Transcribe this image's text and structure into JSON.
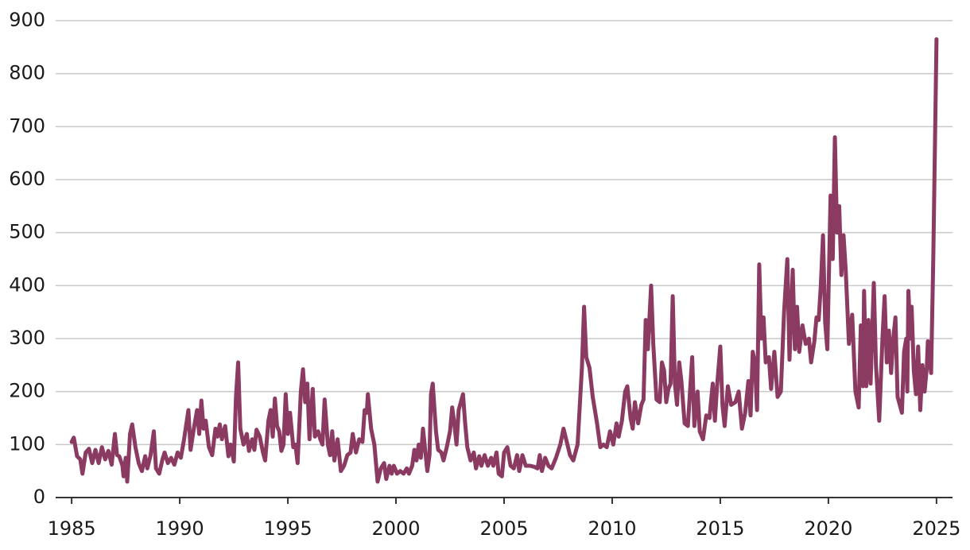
{
  "chart_data": {
    "type": "line",
    "x": [
      1985.0,
      1985.1,
      1985.25,
      1985.4,
      1985.5,
      1985.65,
      1985.8,
      1985.95,
      1986.1,
      1986.25,
      1986.4,
      1986.55,
      1986.7,
      1986.85,
      1987.0,
      1987.1,
      1987.2,
      1987.35,
      1987.4,
      1987.5,
      1987.57,
      1987.7,
      1987.8,
      1987.95,
      1988.1,
      1988.25,
      1988.4,
      1988.5,
      1988.65,
      1988.8,
      1988.9,
      1989.05,
      1989.2,
      1989.3,
      1989.45,
      1989.6,
      1989.75,
      1989.9,
      1990.05,
      1990.2,
      1990.4,
      1990.5,
      1990.65,
      1990.8,
      1990.9,
      1991.0,
      1991.1,
      1991.2,
      1991.35,
      1991.5,
      1991.65,
      1991.75,
      1991.85,
      1991.95,
      1992.1,
      1992.25,
      1992.35,
      1992.5,
      1992.6,
      1992.7,
      1992.8,
      1992.95,
      1993.1,
      1993.2,
      1993.35,
      1993.45,
      1993.55,
      1993.7,
      1993.85,
      1993.95,
      1994.1,
      1994.2,
      1994.3,
      1994.4,
      1994.5,
      1994.6,
      1994.7,
      1994.8,
      1994.9,
      1995.0,
      1995.1,
      1995.25,
      1995.35,
      1995.45,
      1995.6,
      1995.7,
      1995.8,
      1995.9,
      1996.0,
      1996.15,
      1996.25,
      1996.4,
      1996.5,
      1996.6,
      1996.7,
      1996.85,
      1996.95,
      1997.05,
      1997.15,
      1997.3,
      1997.45,
      1997.6,
      1997.75,
      1997.9,
      1998.0,
      1998.15,
      1998.3,
      1998.45,
      1998.55,
      1998.65,
      1998.7,
      1998.85,
      1999.0,
      1999.15,
      1999.3,
      1999.45,
      1999.55,
      1999.7,
      1999.8,
      1999.9,
      2000.05,
      2000.2,
      2000.35,
      2000.5,
      2000.6,
      2000.75,
      2000.85,
      2000.95,
      2001.05,
      2001.15,
      2001.25,
      2001.35,
      2001.45,
      2001.55,
      2001.62,
      2001.7,
      2001.85,
      2001.95,
      2002.1,
      2002.2,
      2002.35,
      2002.5,
      2002.6,
      2002.7,
      2002.8,
      2002.9,
      2003.1,
      2003.2,
      2003.3,
      2003.45,
      2003.6,
      2003.7,
      2003.85,
      2003.95,
      2004.1,
      2004.25,
      2004.4,
      2004.5,
      2004.65,
      2004.75,
      2004.9,
      2005.0,
      2005.15,
      2005.3,
      2005.45,
      2005.6,
      2005.7,
      2005.85,
      2006.0,
      2006.2,
      2006.4,
      2006.55,
      2006.65,
      2006.75,
      2006.9,
      2007.05,
      2007.2,
      2007.4,
      2007.6,
      2007.75,
      2007.9,
      2008.05,
      2008.2,
      2008.4,
      2008.6,
      2008.7,
      2008.8,
      2008.95,
      2009.1,
      2009.3,
      2009.45,
      2009.6,
      2009.75,
      2009.9,
      2010.05,
      2010.2,
      2010.3,
      2010.45,
      2010.6,
      2010.7,
      2010.85,
      2010.95,
      2011.05,
      2011.2,
      2011.35,
      2011.45,
      2011.55,
      2011.65,
      2011.8,
      2011.9,
      2012.05,
      2012.2,
      2012.3,
      2012.4,
      2012.5,
      2012.6,
      2012.7,
      2012.8,
      2012.9,
      2013.0,
      2013.1,
      2013.2,
      2013.35,
      2013.5,
      2013.7,
      2013.8,
      2013.95,
      2014.05,
      2014.2,
      2014.35,
      2014.5,
      2014.65,
      2014.75,
      2014.85,
      2015.0,
      2015.1,
      2015.2,
      2015.35,
      2015.5,
      2015.7,
      2015.85,
      2016.0,
      2016.15,
      2016.3,
      2016.4,
      2016.5,
      2016.6,
      2016.7,
      2016.8,
      2016.9,
      2017.0,
      2017.1,
      2017.25,
      2017.35,
      2017.5,
      2017.65,
      2017.8,
      2017.95,
      2018.1,
      2018.2,
      2018.35,
      2018.45,
      2018.55,
      2018.65,
      2018.8,
      2018.95,
      2019.1,
      2019.2,
      2019.35,
      2019.45,
      2019.55,
      2019.65,
      2019.75,
      2019.85,
      2019.95,
      2020.1,
      2020.2,
      2020.3,
      2020.4,
      2020.5,
      2020.6,
      2020.7,
      2020.8,
      2020.95,
      2021.1,
      2021.25,
      2021.4,
      2021.5,
      2021.6,
      2021.65,
      2021.75,
      2021.85,
      2021.95,
      2022.1,
      2022.2,
      2022.35,
      2022.5,
      2022.6,
      2022.7,
      2022.8,
      2022.9,
      2023.0,
      2023.1,
      2023.2,
      2023.4,
      2023.5,
      2023.6,
      2023.65,
      2023.7,
      2023.8,
      2023.85,
      2023.95,
      2024.05,
      2024.15,
      2024.25,
      2024.35,
      2024.45,
      2024.55,
      2024.6,
      2024.75,
      2024.85,
      2025.0
    ],
    "series": [
      {
        "color": "#8b3a62",
        "values": [
          105,
          113,
          78,
          72,
          45,
          85,
          92,
          65,
          90,
          65,
          95,
          72,
          88,
          62,
          120,
          80,
          78,
          60,
          40,
          75,
          30,
          120,
          138,
          95,
          65,
          50,
          78,
          55,
          80,
          125,
          55,
          45,
          72,
          85,
          65,
          75,
          62,
          85,
          75,
          110,
          165,
          90,
          130,
          165,
          120,
          183,
          130,
          145,
          95,
          80,
          130,
          115,
          138,
          110,
          135,
          78,
          100,
          68,
          190,
          255,
          130,
          100,
          120,
          88,
          110,
          90,
          128,
          115,
          85,
          70,
          145,
          165,
          115,
          187,
          135,
          125,
          88,
          100,
          195,
          120,
          160,
          95,
          100,
          65,
          200,
          242,
          180,
          215,
          110,
          205,
          115,
          125,
          110,
          100,
          185,
          100,
          80,
          125,
          70,
          110,
          50,
          60,
          80,
          85,
          120,
          85,
          110,
          105,
          165,
          160,
          195,
          130,
          100,
          30,
          55,
          65,
          35,
          60,
          45,
          60,
          45,
          50,
          45,
          55,
          45,
          60,
          90,
          70,
          100,
          75,
          130,
          90,
          50,
          80,
          195,
          215,
          125,
          90,
          85,
          70,
          95,
          125,
          170,
          140,
          100,
          165,
          195,
          140,
          95,
          70,
          85,
          55,
          78,
          60,
          80,
          60,
          75,
          60,
          85,
          45,
          40,
          85,
          95,
          60,
          55,
          80,
          50,
          80,
          60,
          60,
          58,
          55,
          80,
          50,
          75,
          60,
          55,
          75,
          100,
          130,
          105,
          80,
          70,
          100,
          245,
          360,
          265,
          245,
          190,
          140,
          95,
          100,
          95,
          125,
          100,
          140,
          115,
          145,
          200,
          210,
          150,
          130,
          180,
          140,
          175,
          185,
          335,
          280,
          400,
          290,
          185,
          180,
          255,
          240,
          180,
          205,
          215,
          380,
          215,
          175,
          255,
          220,
          140,
          135,
          265,
          135,
          200,
          125,
          110,
          155,
          150,
          215,
          145,
          210,
          285,
          175,
          135,
          210,
          175,
          180,
          200,
          130,
          160,
          220,
          155,
          275,
          255,
          165,
          440,
          300,
          340,
          255,
          265,
          205,
          275,
          190,
          200,
          350,
          450,
          260,
          430,
          280,
          360,
          275,
          325,
          290,
          300,
          255,
          295,
          340,
          335,
          400,
          495,
          330,
          280,
          570,
          450,
          680,
          500,
          550,
          420,
          495,
          430,
          290,
          345,
          200,
          170,
          325,
          210,
          390,
          210,
          335,
          215,
          405,
          250,
          145,
          300,
          380,
          255,
          315,
          235,
          300,
          340,
          190,
          160,
          275,
          300,
          200,
          390,
          300,
          360,
          240,
          195,
          285,
          165,
          250,
          200,
          245,
          295,
          235,
          450,
          865
        ]
      }
    ],
    "xlim": [
      1984.26,
      2025.74
    ],
    "xticks": [
      1985,
      1990,
      1995,
      2000,
      2005,
      2010,
      2015,
      2020,
      2025
    ],
    "ylim": [
      0,
      900
    ],
    "yticks": [
      0,
      100,
      200,
      300,
      400,
      500,
      600,
      700,
      800,
      900
    ],
    "grid": true
  }
}
